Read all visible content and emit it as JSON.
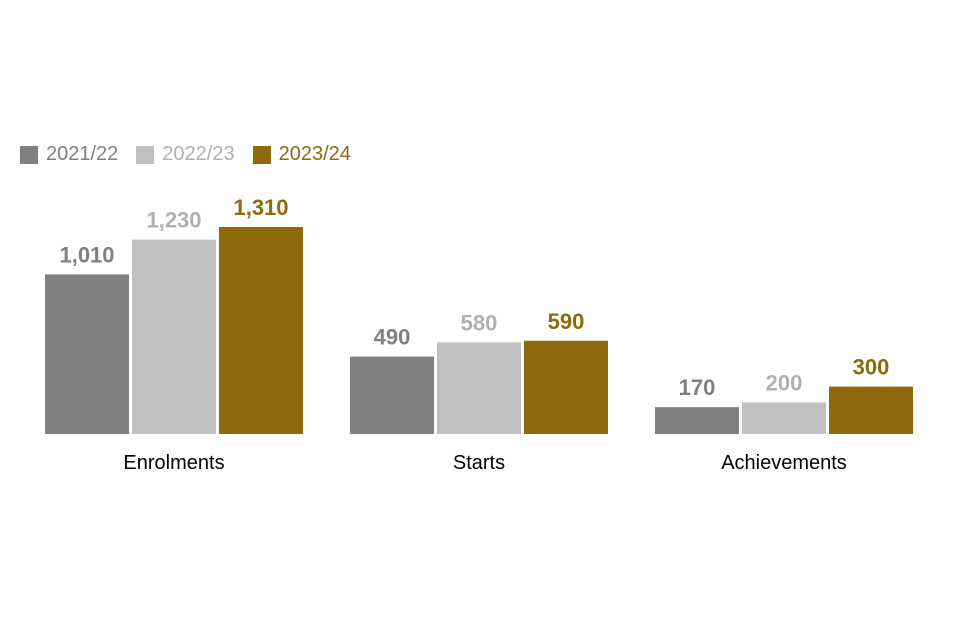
{
  "chart_data": {
    "type": "bar",
    "categories": [
      "Enrolments",
      "Starts",
      "Achievements"
    ],
    "series": [
      {
        "name": "2021/22",
        "color": "#808080",
        "values": [
          1010,
          490,
          170
        ],
        "labels": [
          "1,010",
          "490",
          "170"
        ]
      },
      {
        "name": "2022/23",
        "color": "#c0c0c0",
        "values": [
          1230,
          580,
          200
        ],
        "labels": [
          "1,230",
          "580",
          "200"
        ]
      },
      {
        "name": "2023/24",
        "color": "#8f6a0d",
        "values": [
          1310,
          590,
          300
        ],
        "labels": [
          "1,310",
          "590",
          "300"
        ]
      }
    ],
    "ylim": [
      0,
      1310
    ],
    "grid": false,
    "legend_position": "top-left",
    "title": "",
    "xlabel": "",
    "ylabel": ""
  }
}
